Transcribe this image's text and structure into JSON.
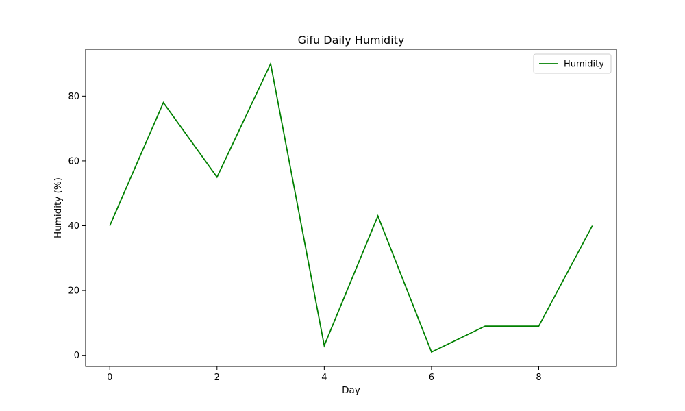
{
  "chart_data": {
    "type": "line",
    "title": "Gifu Daily Humidity",
    "xlabel": "Day",
    "ylabel": "Humidity (%)",
    "x": [
      0,
      1,
      2,
      3,
      4,
      5,
      6,
      7,
      8,
      9
    ],
    "series": [
      {
        "name": "Humidity",
        "values": [
          40,
          78,
          55,
          90,
          3,
          43,
          1,
          9,
          9,
          40
        ],
        "color": "#008000"
      }
    ],
    "xlim": [
      -0.45,
      9.45
    ],
    "ylim": [
      -3.45,
      94.45
    ],
    "xticks": [
      0,
      2,
      4,
      6,
      8
    ],
    "yticks": [
      0,
      20,
      40,
      60,
      80
    ],
    "legend": "top-right",
    "grid": false
  }
}
